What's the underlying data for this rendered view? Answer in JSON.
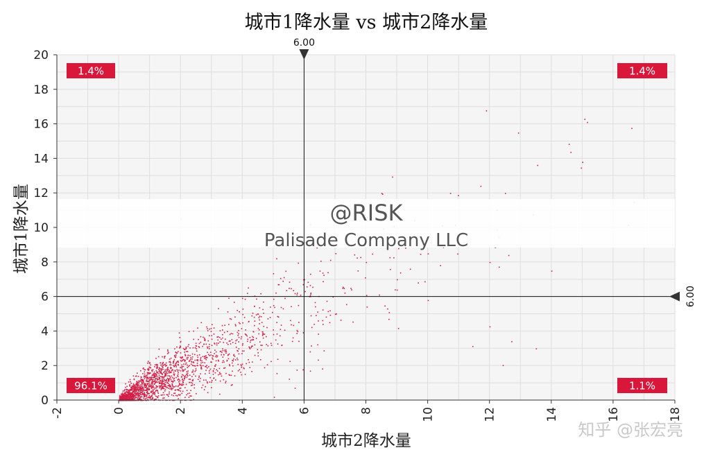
{
  "chart_data": {
    "type": "scatter",
    "title": "城市1降水量 vs 城市2降水量",
    "xlabel": "城市2降水量",
    "ylabel": "城市1降水量",
    "xlim": [
      -2,
      18
    ],
    "ylim": [
      0,
      20
    ],
    "x_ticks": [
      "-2",
      "0",
      "2",
      "4",
      "6",
      "8",
      "10",
      "12",
      "14",
      "16",
      "18"
    ],
    "y_ticks": [
      "0",
      "2",
      "4",
      "6",
      "8",
      "10",
      "12",
      "14",
      "16",
      "18",
      "20"
    ],
    "grid": true,
    "point_color": "#d21f47",
    "distribution_note_points_sample": [
      [
        0.2,
        0.3
      ],
      [
        0.5,
        0.8
      ],
      [
        1.0,
        1.2
      ],
      [
        1.5,
        2.0
      ],
      [
        2.0,
        2.5
      ],
      [
        2.5,
        3.0
      ],
      [
        3.0,
        3.2
      ],
      [
        3.5,
        4.0
      ],
      [
        4.0,
        4.5
      ],
      [
        4.5,
        5.0
      ],
      [
        5.0,
        5.5
      ],
      [
        5.5,
        6.5
      ],
      [
        6.0,
        7.0
      ],
      [
        6.5,
        7.5
      ],
      [
        7.0,
        5.0
      ],
      [
        7.5,
        6.5
      ],
      [
        8.0,
        8.0
      ],
      [
        9.0,
        7.0
      ],
      [
        10.0,
        8.5
      ],
      [
        11.0,
        9.0
      ],
      [
        12.0,
        8.0
      ],
      [
        14.0,
        7.5
      ],
      [
        15.0,
        13.8
      ],
      [
        12.5,
        12.0
      ],
      [
        8.5,
        12.0
      ],
      [
        2.0,
        10.5
      ],
      [
        13.5,
        3.0
      ],
      [
        10.0,
        5.8
      ]
    ],
    "crosshair": {
      "x": 6.0,
      "y": 6.0,
      "x_label": "6.00",
      "y_label": "6.00"
    },
    "quadrants": {
      "top_left": "1.4%",
      "top_right": "1.4%",
      "bottom_left": "96.1%",
      "bottom_right": "1.1%"
    },
    "quadrant_badge_color": "#d9173b"
  },
  "watermark": {
    "line1": "@RISK",
    "line2": "Palisade Company LLC"
  },
  "credit": "知乎 @张宏亮"
}
